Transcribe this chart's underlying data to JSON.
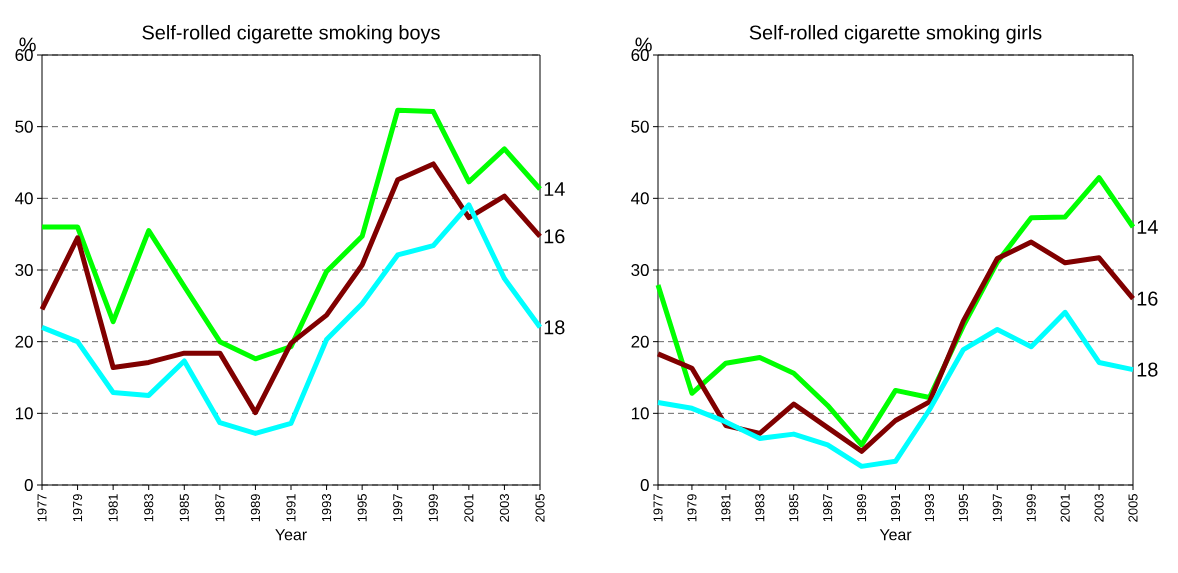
{
  "chart_data": [
    {
      "type": "line",
      "title": "Self-rolled cigarette smoking boys",
      "xlabel": "Year",
      "ylabel": "%",
      "x": [
        1977,
        1979,
        1981,
        1983,
        1985,
        1987,
        1989,
        1991,
        1993,
        1995,
        1997,
        1999,
        2001,
        2003,
        2005
      ],
      "xlim": [
        1977,
        2005
      ],
      "xticks": [
        1977,
        1979,
        1981,
        1983,
        1985,
        1987,
        1989,
        1991,
        1993,
        1995,
        1997,
        1999,
        2001,
        2003,
        2005
      ],
      "ylim": [
        0,
        60
      ],
      "yticks": [
        0,
        10,
        20,
        30,
        40,
        50,
        60
      ],
      "grid": "y",
      "series": [
        {
          "name": "14",
          "color": "#00ff00",
          "values": [
            36,
            36,
            22.8,
            35.5,
            27.7,
            20,
            17.6,
            19.3,
            29.8,
            34.7,
            52.3,
            52.1,
            42.3,
            46.9,
            41.3
          ]
        },
        {
          "name": "16",
          "color": "#800000",
          "values": [
            24.5,
            34.5,
            16.4,
            17.1,
            18.4,
            18.4,
            10.1,
            19.8,
            23.7,
            30.7,
            42.6,
            44.8,
            37.3,
            40.3,
            34.7
          ]
        },
        {
          "name": "18",
          "color": "#00ffff",
          "values": [
            22,
            20,
            12.9,
            12.5,
            17.3,
            8.7,
            7.2,
            8.6,
            20.3,
            25.3,
            32.1,
            33.4,
            39.1,
            28.8,
            22
          ]
        }
      ]
    },
    {
      "type": "line",
      "title": "Self-rolled cigarette smoking girls",
      "xlabel": "Year",
      "ylabel": "%",
      "x": [
        1977,
        1979,
        1981,
        1983,
        1985,
        1987,
        1989,
        1991,
        1993,
        1995,
        1997,
        1999,
        2001,
        2003,
        2005
      ],
      "xlim": [
        1977,
        2005
      ],
      "xticks": [
        1977,
        1979,
        1981,
        1983,
        1985,
        1987,
        1989,
        1991,
        1993,
        1995,
        1997,
        1999,
        2001,
        2003,
        2005
      ],
      "ylim": [
        0,
        60
      ],
      "yticks": [
        0,
        10,
        20,
        30,
        40,
        50,
        60
      ],
      "grid": "y",
      "series": [
        {
          "name": "14",
          "color": "#00ff00",
          "values": [
            27.9,
            12.8,
            17,
            17.8,
            15.6,
            11.1,
            5.6,
            13.2,
            12.2,
            22.2,
            31.1,
            37.3,
            37.4,
            42.9,
            36
          ]
        },
        {
          "name": "16",
          "color": "#800000",
          "values": [
            18.3,
            16.3,
            8.3,
            7.2,
            11.3,
            8,
            4.7,
            9,
            11.6,
            22.9,
            31.6,
            33.9,
            31,
            31.7,
            26
          ]
        },
        {
          "name": "18",
          "color": "#00ffff",
          "values": [
            11.5,
            10.7,
            8.8,
            6.5,
            7.1,
            5.6,
            2.6,
            3.3,
            10.5,
            18.9,
            21.7,
            19.3,
            24.1,
            17.1,
            16.1
          ]
        }
      ]
    }
  ]
}
